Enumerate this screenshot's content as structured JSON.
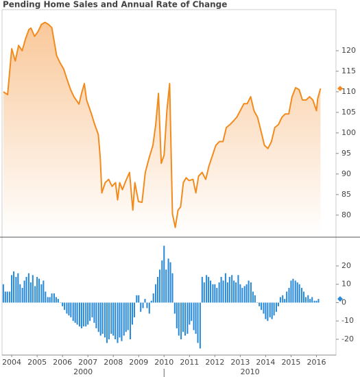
{
  "chart_data": [
    {
      "type": "area_line",
      "title": "Pending Home Sales and Annual Rate of Change",
      "color": "#f28a1c",
      "x": [
        2003.67,
        2003.84,
        2004.0,
        2004.14,
        2004.27,
        2004.41,
        2004.55,
        2004.68,
        2004.76,
        2004.9,
        2005.04,
        2005.17,
        2005.31,
        2005.45,
        2005.58,
        2005.77,
        2005.91,
        2006.05,
        2006.18,
        2006.32,
        2006.45,
        2006.65,
        2006.75,
        2006.86,
        2006.95,
        2007.14,
        2007.27,
        2007.41,
        2007.49,
        2007.55,
        2007.68,
        2007.82,
        2007.95,
        2008.09,
        2008.17,
        2008.25,
        2008.36,
        2008.5,
        2008.64,
        2008.77,
        2008.85,
        2008.99,
        2009.13,
        2009.26,
        2009.4,
        2009.56,
        2009.67,
        2009.78,
        2009.89,
        2010.0,
        2010.11,
        2010.22,
        2010.33,
        2010.44,
        2010.55,
        2010.65,
        2010.76,
        2010.87,
        2010.98,
        2011.14,
        2011.25,
        2011.36,
        2011.5,
        2011.64,
        2011.77,
        2011.91,
        2012.04,
        2012.18,
        2012.32,
        2012.45,
        2012.59,
        2012.73,
        2012.86,
        2013.0,
        2013.14,
        2013.27,
        2013.41,
        2013.54,
        2013.68,
        2013.82,
        2013.95,
        2014.09,
        2014.23,
        2014.36,
        2014.5,
        2014.64,
        2014.77,
        2014.91,
        2015.04,
        2015.18,
        2015.32,
        2015.45,
        2015.59,
        2015.73,
        2015.86,
        2016.0,
        2016.05,
        2016.16
      ],
      "values": [
        110,
        109.3,
        120.5,
        117.5,
        121.3,
        120,
        123,
        125.2,
        125.5,
        123.5,
        124.7,
        126.4,
        126.9,
        126.4,
        125.6,
        118.8,
        117,
        115.5,
        113,
        110.5,
        108.8,
        107,
        109.6,
        112,
        108,
        104.6,
        102,
        99.6,
        93.7,
        85.4,
        87.9,
        88.7,
        87,
        87.9,
        83.7,
        87.9,
        86.2,
        88.4,
        90.4,
        81.2,
        87.9,
        83.3,
        83.1,
        90.4,
        93.7,
        97,
        102,
        109.6,
        92.6,
        94.6,
        105.4,
        112,
        80.3,
        77,
        81.2,
        82,
        87.9,
        89.1,
        88.4,
        88.7,
        85.4,
        89.5,
        90.4,
        88.7,
        92,
        94.6,
        97,
        97.9,
        97.9,
        101.3,
        102,
        102.9,
        103.8,
        105.4,
        107.1,
        107.1,
        108.8,
        105.4,
        103.8,
        100.4,
        97,
        96.2,
        97.9,
        101.3,
        102,
        103.8,
        104.6,
        104.6,
        108.8,
        111,
        110.5,
        108,
        108,
        108.8,
        108,
        105.4,
        108.3,
        110.8
      ],
      "xlim": [
        2003.62,
        2016.77
      ],
      "ylim": [
        74.8,
        130
      ],
      "yticks": [
        80,
        85,
        90,
        95,
        100,
        105,
        110,
        115,
        120
      ]
    },
    {
      "type": "bar",
      "color": "#2a8ad8",
      "x": [
        2003.67,
        2003.75,
        2003.83,
        2003.92,
        2004.0,
        2004.08,
        2004.17,
        2004.25,
        2004.33,
        2004.42,
        2004.5,
        2004.58,
        2004.67,
        2004.75,
        2004.83,
        2004.92,
        2005.0,
        2005.08,
        2005.17,
        2005.25,
        2005.33,
        2005.42,
        2005.5,
        2005.58,
        2005.67,
        2005.75,
        2005.83,
        2005.92,
        2006.0,
        2006.08,
        2006.17,
        2006.25,
        2006.33,
        2006.42,
        2006.5,
        2006.58,
        2006.67,
        2006.75,
        2006.83,
        2006.92,
        2007.0,
        2007.08,
        2007.17,
        2007.25,
        2007.33,
        2007.42,
        2007.5,
        2007.58,
        2007.67,
        2007.75,
        2007.83,
        2007.92,
        2008.0,
        2008.08,
        2008.17,
        2008.25,
        2008.33,
        2008.42,
        2008.5,
        2008.58,
        2008.67,
        2008.75,
        2008.83,
        2008.92,
        2009.0,
        2009.08,
        2009.17,
        2009.25,
        2009.33,
        2009.42,
        2009.5,
        2009.58,
        2009.67,
        2009.75,
        2009.83,
        2009.92,
        2010.0,
        2010.08,
        2010.17,
        2010.25,
        2010.33,
        2010.42,
        2010.5,
        2010.58,
        2010.67,
        2010.75,
        2010.83,
        2010.92,
        2011.0,
        2011.08,
        2011.17,
        2011.25,
        2011.33,
        2011.42,
        2011.5,
        2011.58,
        2011.67,
        2011.75,
        2011.83,
        2011.92,
        2012.0,
        2012.08,
        2012.17,
        2012.25,
        2012.33,
        2012.42,
        2012.5,
        2012.58,
        2012.67,
        2012.75,
        2012.83,
        2012.92,
        2013.0,
        2013.08,
        2013.17,
        2013.25,
        2013.33,
        2013.42,
        2013.5,
        2013.58,
        2013.67,
        2013.75,
        2013.83,
        2013.92,
        2014.0,
        2014.08,
        2014.17,
        2014.25,
        2014.33,
        2014.42,
        2014.5,
        2014.58,
        2014.67,
        2014.75,
        2014.83,
        2014.92,
        2015.0,
        2015.08,
        2015.17,
        2015.25,
        2015.33,
        2015.42,
        2015.5,
        2015.58,
        2015.67,
        2015.75,
        2015.83,
        2015.92,
        2016.0,
        2016.08
      ],
      "values": [
        10,
        6,
        6,
        6,
        15,
        17,
        14,
        16,
        10,
        8,
        12,
        14,
        16,
        11,
        15,
        9,
        14,
        13,
        10,
        12,
        6,
        3,
        3,
        5,
        5,
        3,
        2,
        0,
        -2,
        -4,
        -6,
        -7,
        -8,
        -10,
        -11,
        -12,
        -13,
        -14,
        -13,
        -13,
        -12,
        -10,
        -8,
        -11,
        -14,
        -16,
        -18,
        -17,
        -19,
        -22,
        -20,
        -17,
        -18,
        -20,
        -22,
        -19,
        -21,
        -18,
        -16,
        -15,
        -20,
        -12,
        -8,
        4,
        4,
        -5,
        -3,
        2,
        -3,
        -6,
        1,
        5,
        10,
        14,
        18,
        23,
        31,
        18,
        24,
        22,
        16,
        -6,
        -14,
        -18,
        -20,
        -16,
        -18,
        -17,
        -12,
        -10,
        -15,
        -17,
        -22,
        -25,
        14,
        11,
        15,
        14,
        12,
        10,
        10,
        8,
        11,
        14,
        12,
        16,
        11,
        14,
        15,
        12,
        11,
        15,
        10,
        8,
        9,
        10,
        12,
        11,
        6,
        4,
        0,
        -2,
        -4,
        -6,
        -9,
        -10,
        -8,
        -9,
        -7,
        -5,
        -2,
        3,
        4,
        2,
        6,
        8,
        12,
        13,
        12,
        11,
        10,
        8,
        6,
        3,
        4,
        2,
        3,
        1,
        1,
        2
      ],
      "xlim": [
        2003.62,
        2016.77
      ],
      "ylim": [
        -28.6,
        35.3
      ],
      "yticks": [
        -20,
        -10,
        0,
        10,
        20
      ],
      "xticks": [
        2004,
        2005,
        2006,
        2007,
        2008,
        2009,
        2010,
        2011,
        2012,
        2013,
        2014,
        2015,
        2016
      ],
      "decade_labels": [
        2000,
        2010
      ]
    }
  ]
}
